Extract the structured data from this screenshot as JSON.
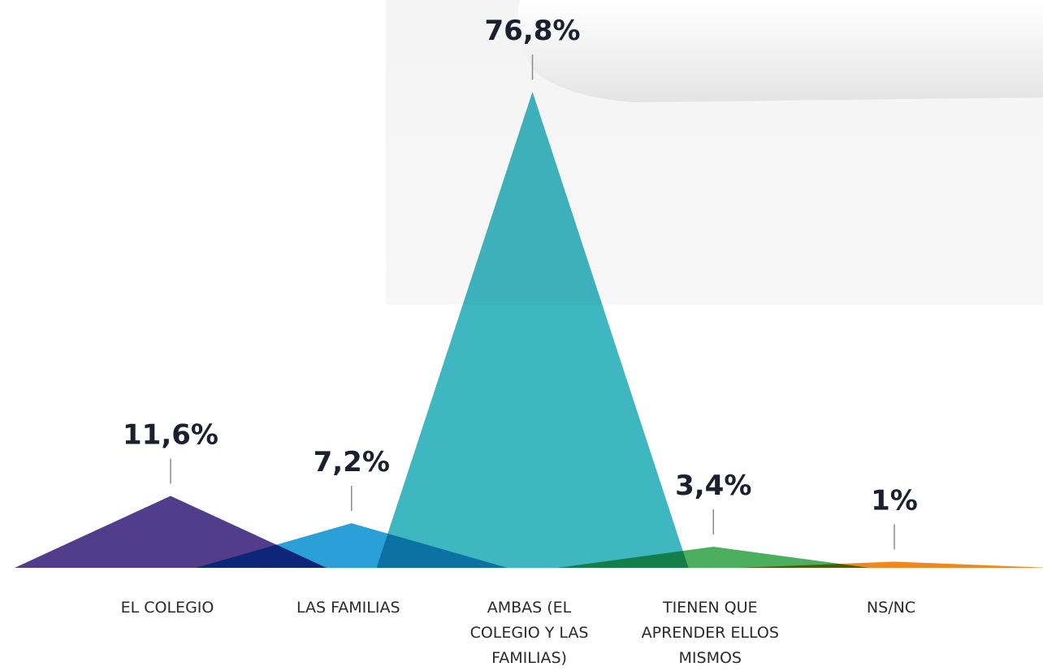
{
  "chart_data": {
    "type": "peak",
    "categories": [
      "EL COLEGIO",
      "LAS FAMILIAS",
      "AMBAS (EL COLEGIO Y LAS FAMILIAS)",
      "TIENEN QUE APRENDER ELLOS MISMOS",
      "NS/NC"
    ],
    "values": [
      11.6,
      7.2,
      76.8,
      3.4,
      1
    ],
    "value_labels": [
      "11,6%",
      "7,2%",
      "76,8%",
      "3,4%",
      "1%"
    ],
    "colors": [
      "#523c8c",
      "#2a9fd8",
      "#3fb7c1",
      "#4caf5f",
      "#f0881f"
    ]
  }
}
